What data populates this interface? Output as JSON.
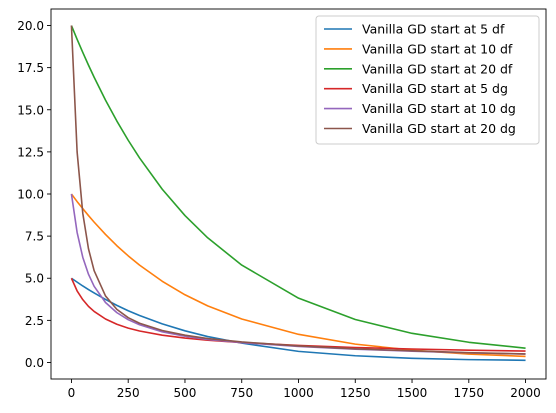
{
  "chart_data": {
    "type": "line",
    "title": "",
    "xlabel": "",
    "ylabel": "",
    "xlim": [
      -90,
      2090
    ],
    "ylim": [
      -0.98,
      20.98
    ],
    "xticks": [
      0,
      250,
      500,
      750,
      1000,
      1250,
      1500,
      1750,
      2000
    ],
    "xtick_labels": [
      "0",
      "250",
      "500",
      "750",
      "1000",
      "1250",
      "1500",
      "1750",
      "2000"
    ],
    "yticks": [
      0.0,
      2.5,
      5.0,
      7.5,
      10.0,
      12.5,
      15.0,
      17.5,
      20.0
    ],
    "ytick_labels": [
      "0.0",
      "2.5",
      "5.0",
      "7.5",
      "10.0",
      "12.5",
      "15.0",
      "17.5",
      "20.0"
    ],
    "grid": false,
    "legend_position": "top-right",
    "x": [
      0,
      25,
      50,
      75,
      100,
      150,
      200,
      250,
      300,
      400,
      500,
      600,
      750,
      1000,
      1250,
      1500,
      1750,
      2000
    ],
    "series": [
      {
        "name": "Vanilla GD start at 5 df",
        "color": "#1f77b4",
        "values": [
          5.0,
          4.77,
          4.54,
          4.33,
          4.13,
          3.74,
          3.39,
          3.07,
          2.79,
          2.29,
          1.88,
          1.54,
          1.15,
          0.66,
          0.4,
          0.25,
          0.17,
          0.13
        ]
      },
      {
        "name": "Vanilla GD start at 10 df",
        "color": "#ff7f0e",
        "values": [
          10.0,
          9.55,
          9.13,
          8.72,
          8.33,
          7.6,
          6.93,
          6.33,
          5.78,
          4.82,
          4.02,
          3.36,
          2.58,
          1.67,
          1.09,
          0.73,
          0.5,
          0.36
        ]
      },
      {
        "name": "Vanilla GD start at 20 df",
        "color": "#2ca02c",
        "values": [
          20.0,
          19.18,
          18.4,
          17.65,
          16.93,
          15.57,
          14.33,
          13.19,
          12.14,
          10.28,
          8.72,
          7.4,
          5.78,
          3.82,
          2.55,
          1.73,
          1.2,
          0.85
        ]
      },
      {
        "name": "Vanilla GD start at 5 dg",
        "color": "#d62728",
        "values": [
          5.0,
          4.25,
          3.73,
          3.33,
          3.03,
          2.58,
          2.27,
          2.04,
          1.87,
          1.62,
          1.45,
          1.32,
          1.18,
          1.01,
          0.89,
          0.8,
          0.73,
          0.68
        ]
      },
      {
        "name": "Vanilla GD start at 10 dg",
        "color": "#9467bd",
        "values": [
          10.0,
          7.72,
          6.24,
          5.24,
          4.52,
          3.56,
          2.96,
          2.54,
          2.24,
          1.82,
          1.56,
          1.37,
          1.18,
          0.95,
          0.79,
          0.67,
          0.57,
          0.5
        ]
      },
      {
        "name": "Vanilla GD start at 20 dg",
        "color": "#8c564b",
        "values": [
          20.0,
          12.5,
          8.85,
          6.75,
          5.45,
          3.95,
          3.15,
          2.66,
          2.33,
          1.9,
          1.62,
          1.42,
          1.22,
          0.98,
          0.81,
          0.69,
          0.58,
          0.51
        ]
      }
    ]
  }
}
